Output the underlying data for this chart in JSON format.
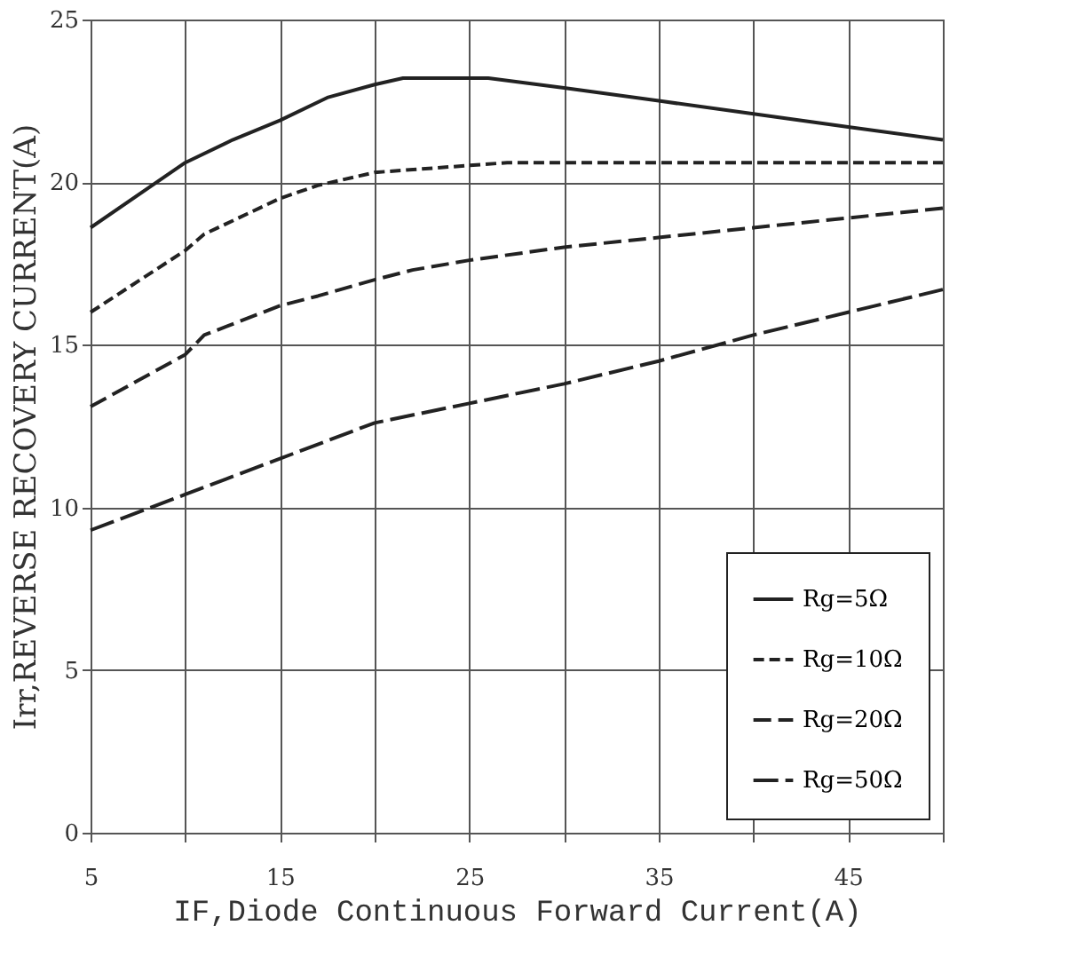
{
  "chart_data": {
    "type": "line",
    "xlabel": "IF,Diode Continuous Forward Current(A)",
    "ylabel": "Irr,REVERSE RECOVERY CURRENT(A)",
    "xlim": [
      5,
      50
    ],
    "ylim": [
      0,
      25
    ],
    "xticks": [
      5,
      {
        "value": 10,
        "label": null
      },
      15,
      {
        "value": 20,
        "label": null
      },
      25,
      {
        "value": 30,
        "label": null
      },
      35,
      {
        "value": 40,
        "label": null
      },
      45,
      {
        "value": 50,
        "label": null
      }
    ],
    "yticks": [
      0,
      5,
      10,
      15,
      20,
      25
    ],
    "grid": true,
    "legend": "bottom right",
    "marker": "none",
    "series": [
      {
        "name": "Rg=5Ω",
        "color": "#222222",
        "line_style": "solid",
        "x": [
          5,
          10,
          12.5,
          15,
          17.5,
          20,
          21.5,
          26,
          30,
          35,
          40,
          45,
          50
        ],
        "values": [
          18.6,
          20.6,
          21.3,
          21.9,
          22.6,
          23.0,
          23.2,
          23.2,
          22.9,
          22.5,
          22.1,
          21.7,
          21.3
        ]
      },
      {
        "name": "Rg=10Ω",
        "color": "#222222",
        "line_style": "dashed",
        "x": [
          5,
          10,
          11,
          15,
          17,
          20,
          27,
          50
        ],
        "values": [
          16.0,
          17.9,
          18.4,
          19.5,
          19.9,
          20.3,
          20.6,
          20.6
        ]
      },
      {
        "name": "Rg=20Ω",
        "color": "#222222",
        "line_style": "dashed",
        "x": [
          5,
          10,
          11,
          15,
          17,
          20,
          22,
          25,
          30,
          35,
          40,
          45,
          50
        ],
        "values": [
          13.1,
          14.7,
          15.3,
          16.2,
          16.5,
          17.0,
          17.3,
          17.6,
          18.0,
          18.3,
          18.6,
          18.9,
          19.2
        ]
      },
      {
        "name": "Rg=50Ω",
        "color": "#222222",
        "line_style": "dashed",
        "x": [
          5,
          10,
          15,
          20,
          25,
          30,
          35,
          40,
          45,
          50
        ],
        "values": [
          9.3,
          10.4,
          11.5,
          12.6,
          13.2,
          13.8,
          14.5,
          15.3,
          16.0,
          16.7
        ]
      }
    ]
  }
}
